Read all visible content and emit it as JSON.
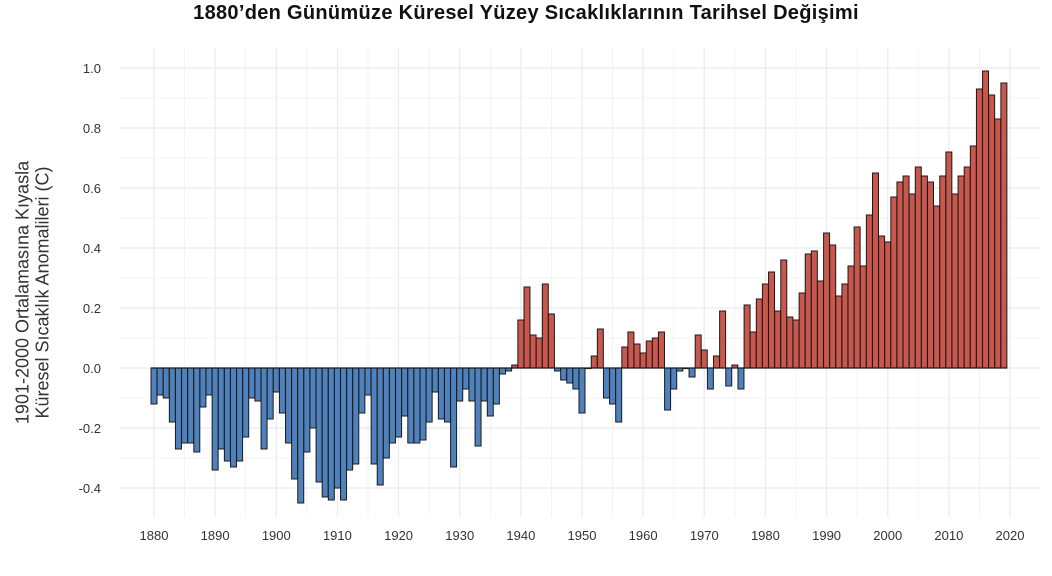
{
  "chart_data": {
    "type": "bar",
    "title": "1880’den Günümüze Küresel Yüzey Sıcaklıklarının Tarihsel Değişimi",
    "ylabel_lines": [
      "1901-2000 Ortalamasına Kıyasla",
      "Küresel Sıcaklık Anomalileri (C)"
    ],
    "xlabel": "",
    "xlim": [
      1880,
      2020
    ],
    "ylim": [
      -0.45,
      1.0
    ],
    "x_ticks": [
      "1880",
      "1890",
      "1900",
      "1910",
      "1920",
      "1930",
      "1940",
      "1950",
      "1960",
      "1970",
      "1980",
      "1990",
      "2000",
      "2010",
      "2020"
    ],
    "y_ticks": [
      "-0.4",
      "-0.2",
      "0.0",
      "0.2",
      "0.4",
      "0.6",
      "0.8",
      "1.0"
    ],
    "grid": true,
    "colors": {
      "positive": "#c8574d",
      "negative": "#4f81bd",
      "outline": "#1a1a1a",
      "grid": "#ebebeb"
    },
    "x": [
      1880,
      1881,
      1882,
      1883,
      1884,
      1885,
      1886,
      1887,
      1888,
      1889,
      1890,
      1891,
      1892,
      1893,
      1894,
      1895,
      1896,
      1897,
      1898,
      1899,
      1900,
      1901,
      1902,
      1903,
      1904,
      1905,
      1906,
      1907,
      1908,
      1909,
      1910,
      1911,
      1912,
      1913,
      1914,
      1915,
      1916,
      1917,
      1918,
      1919,
      1920,
      1921,
      1922,
      1923,
      1924,
      1925,
      1926,
      1927,
      1928,
      1929,
      1930,
      1931,
      1932,
      1933,
      1934,
      1935,
      1936,
      1937,
      1938,
      1939,
      1940,
      1941,
      1942,
      1943,
      1944,
      1945,
      1946,
      1947,
      1948,
      1949,
      1950,
      1951,
      1952,
      1953,
      1954,
      1955,
      1956,
      1957,
      1958,
      1959,
      1960,
      1961,
      1962,
      1963,
      1964,
      1965,
      1966,
      1967,
      1968,
      1969,
      1970,
      1971,
      1972,
      1973,
      1974,
      1975,
      1976,
      1977,
      1978,
      1979,
      1980,
      1981,
      1982,
      1983,
      1984,
      1985,
      1986,
      1987,
      1988,
      1989,
      1990,
      1991,
      1992,
      1993,
      1994,
      1995,
      1996,
      1997,
      1998,
      1999,
      2000,
      2001,
      2002,
      2003,
      2004,
      2005,
      2006,
      2007,
      2008,
      2009,
      2010,
      2011,
      2012,
      2013,
      2014,
      2015,
      2016,
      2017,
      2018,
      2019
    ],
    "values": [
      -0.12,
      -0.09,
      -0.1,
      -0.18,
      -0.27,
      -0.25,
      -0.25,
      -0.28,
      -0.13,
      -0.09,
      -0.34,
      -0.27,
      -0.31,
      -0.33,
      -0.31,
      -0.23,
      -0.1,
      -0.11,
      -0.27,
      -0.17,
      -0.08,
      -0.15,
      -0.25,
      -0.37,
      -0.45,
      -0.28,
      -0.2,
      -0.38,
      -0.43,
      -0.44,
      -0.4,
      -0.44,
      -0.34,
      -0.32,
      -0.15,
      -0.09,
      -0.32,
      -0.39,
      -0.3,
      -0.25,
      -0.23,
      -0.16,
      -0.25,
      -0.25,
      -0.24,
      -0.18,
      -0.08,
      -0.17,
      -0.18,
      -0.33,
      -0.11,
      -0.07,
      -0.11,
      -0.26,
      -0.11,
      -0.16,
      -0.12,
      -0.02,
      -0.01,
      0.01,
      0.16,
      0.27,
      0.11,
      0.1,
      0.28,
      0.18,
      -0.01,
      -0.04,
      -0.05,
      -0.07,
      -0.15,
      0.0,
      0.04,
      0.13,
      -0.1,
      -0.12,
      -0.18,
      0.07,
      0.12,
      0.08,
      0.05,
      0.09,
      0.1,
      0.12,
      -0.14,
      -0.07,
      -0.01,
      0.0,
      -0.03,
      0.11,
      0.06,
      -0.07,
      0.04,
      0.19,
      -0.06,
      0.01,
      -0.07,
      0.21,
      0.12,
      0.23,
      0.28,
      0.32,
      0.19,
      0.36,
      0.17,
      0.16,
      0.25,
      0.38,
      0.39,
      0.29,
      0.45,
      0.41,
      0.24,
      0.28,
      0.34,
      0.47,
      0.34,
      0.51,
      0.65,
      0.44,
      0.42,
      0.57,
      0.62,
      0.64,
      0.58,
      0.67,
      0.64,
      0.62,
      0.54,
      0.64,
      0.72,
      0.58,
      0.64,
      0.67,
      0.74,
      0.93,
      0.99,
      0.91,
      0.83,
      0.95
    ]
  }
}
